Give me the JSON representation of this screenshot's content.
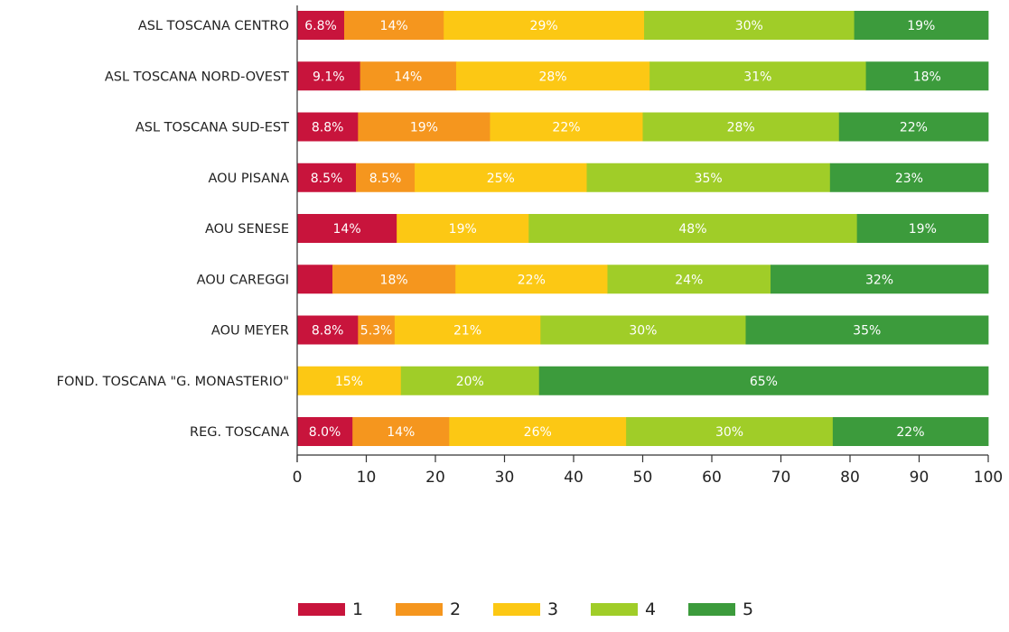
{
  "chart_data": {
    "type": "bar",
    "orientation": "horizontal",
    "stacked": true,
    "categories": [
      "ASL TOSCANA  CENTRO",
      "ASL TOSCANA NORD-OVEST",
      "ASL TOSCANA SUD-EST",
      "AOU PISANA",
      "AOU SENESE",
      "AOU CAREGGI",
      "AOU MEYER",
      "FOND. TOSCANA \"G. MONASTERIO\"",
      "REG. TOSCANA"
    ],
    "series": [
      {
        "name": "1",
        "color": "#c8143c",
        "values": [
          6.8,
          9.1,
          8.8,
          8.5,
          14.4,
          5.1,
          8.8,
          0,
          8.0
        ],
        "labels": [
          "6.8%",
          "9.1%",
          "8.8%",
          "8.5%",
          "14%",
          "",
          "8.8%",
          "",
          "8.0%"
        ]
      },
      {
        "name": "2",
        "color": "#f5961e",
        "values": [
          14.4,
          13.9,
          19.1,
          8.5,
          0,
          17.8,
          5.3,
          0,
          14.0
        ],
        "labels": [
          "14%",
          "14%",
          "19%",
          "8.5%",
          "",
          "18%",
          "5.3%",
          "",
          "14%"
        ]
      },
      {
        "name": "3",
        "color": "#fcc814",
        "values": [
          29.0,
          28.0,
          22.1,
          24.9,
          19.1,
          22.0,
          21.1,
          15.0,
          25.6
        ],
        "labels": [
          "29%",
          "28%",
          "22%",
          "25%",
          "19%",
          "22%",
          "21%",
          "15%",
          "26%"
        ]
      },
      {
        "name": "4",
        "color": "#a0cd28",
        "values": [
          30.4,
          31.3,
          28.4,
          35.2,
          47.5,
          23.6,
          29.7,
          20.0,
          29.9
        ],
        "labels": [
          "30%",
          "31%",
          "28%",
          "35%",
          "48%",
          "24%",
          "30%",
          "20%",
          "30%"
        ]
      },
      {
        "name": "5",
        "color": "#3c9b3c",
        "values": [
          19.4,
          17.7,
          21.6,
          22.9,
          19.0,
          31.5,
          35.1,
          65.0,
          22.5
        ],
        "labels": [
          "19%",
          "18%",
          "22%",
          "23%",
          "19%",
          "32%",
          "35%",
          "65%",
          "22%"
        ]
      }
    ],
    "xlim": [
      0,
      100
    ],
    "xticks": [
      "0",
      "10",
      "20",
      "30",
      "40",
      "50",
      "60",
      "70",
      "80",
      "90",
      "100"
    ],
    "title": "",
    "xlabel": "",
    "ylabel": "",
    "grid": false,
    "legend": "bottom"
  }
}
